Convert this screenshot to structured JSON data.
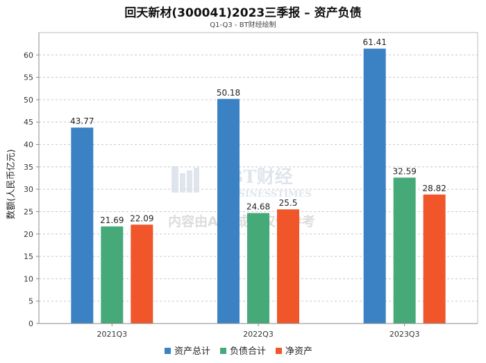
{
  "chart_data": {
    "type": "bar",
    "title": "回天新材(300041)2023三季报 – 资产负债",
    "subtitle": "Q1-Q3 - BT财经绘制",
    "ylabel": "数额(人民币亿元)",
    "xlabel": "",
    "categories": [
      "2021Q3",
      "2022Q3",
      "2023Q3"
    ],
    "ylim": [
      0,
      65
    ],
    "yticks": [
      0,
      5,
      10,
      15,
      20,
      25,
      30,
      35,
      40,
      45,
      50,
      55,
      60
    ],
    "grid": true,
    "legend_position": "bottom",
    "series": [
      {
        "name": "资产总计",
        "color": "#3b82c4",
        "values": [
          43.77,
          50.18,
          61.41
        ]
      },
      {
        "name": "负债合计",
        "color": "#45aa78",
        "values": [
          21.69,
          24.68,
          32.59
        ]
      },
      {
        "name": "净资产",
        "color": "#f0562a",
        "values": [
          22.09,
          25.5,
          28.82
        ]
      }
    ]
  },
  "watermark": {
    "brand": "BT财经",
    "brand_sub": "BUSINESSTIMES",
    "notice": "内容由AI生成，仅供参考"
  }
}
